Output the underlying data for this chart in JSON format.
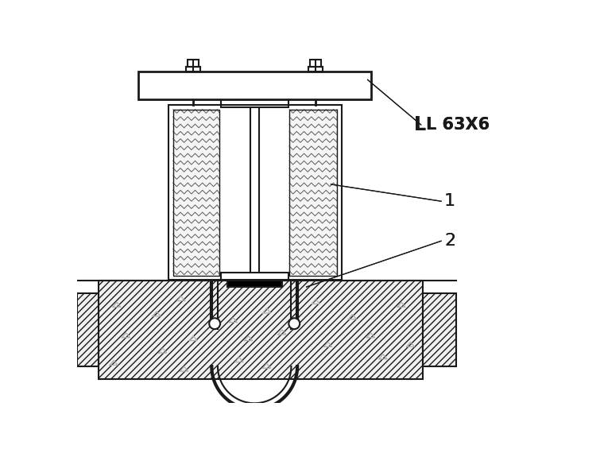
{
  "bg_color": "#ffffff",
  "line_color": "#1a1a1a",
  "figsize": [
    7.6,
    5.7
  ],
  "dpi": 100,
  "label_L": "L 63X6",
  "label_1": "1",
  "label_2": "2"
}
